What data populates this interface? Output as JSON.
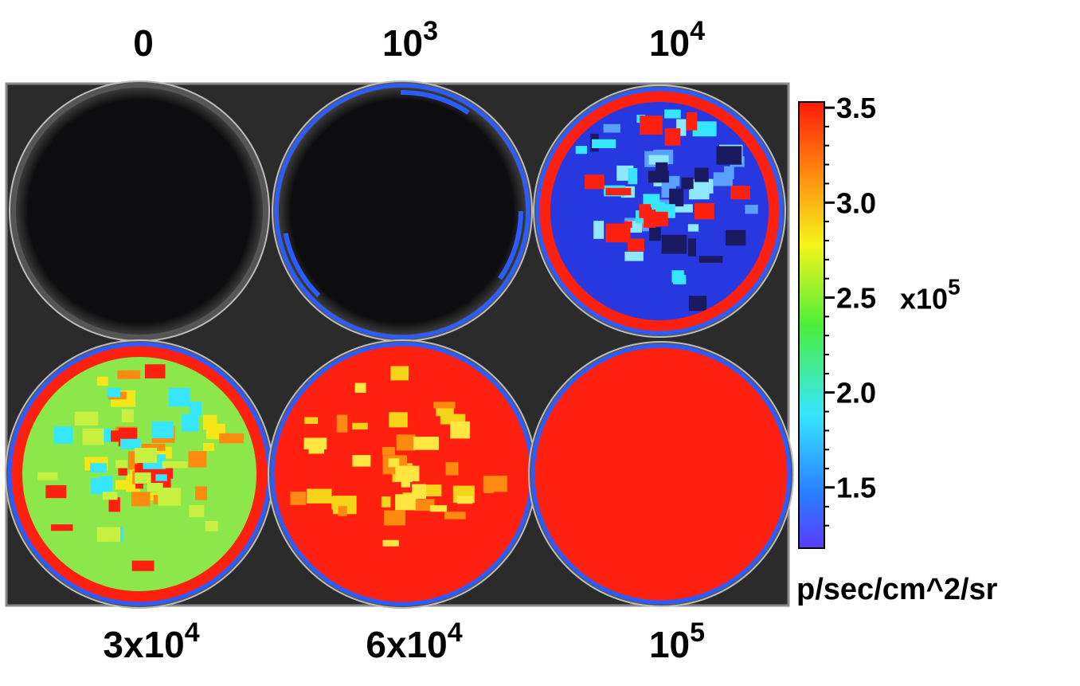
{
  "wells": [
    {
      "label": {
        "base": "0"
      }
    },
    {
      "label": {
        "base": "10",
        "exp": "3"
      }
    },
    {
      "label": {
        "base": "10",
        "exp": "4"
      }
    },
    {
      "label": {
        "base": "3x10",
        "exp": "4"
      }
    },
    {
      "label": {
        "base": "6x10",
        "exp": "4"
      }
    },
    {
      "label": {
        "base": "10",
        "exp": "5"
      }
    }
  ],
  "colorbar": {
    "lim": [
      1.18,
      3.53
    ],
    "ticks": [
      {
        "value": 1.5,
        "label": "1.5"
      },
      {
        "value": 2,
        "label": "2.0"
      },
      {
        "value": 2.5,
        "label": "2.5"
      },
      {
        "value": 3,
        "label": "3.0"
      },
      {
        "value": 3.5,
        "label": "3.5"
      }
    ],
    "multiplier": {
      "base": "x10",
      "exp": "5"
    },
    "unit": "p/sec/cm^2/sr"
  }
}
